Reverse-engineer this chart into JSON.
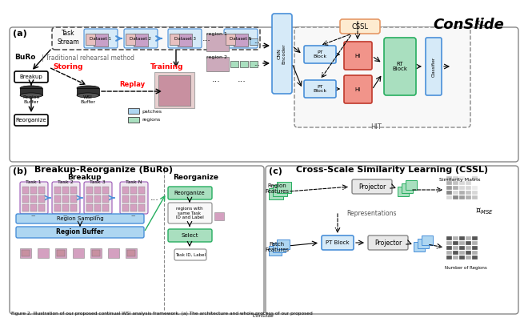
{
  "title": "ConSlide",
  "caption": "Figure 2. Illustration of our proposed continual WSI analysis framework. (a) The architecture and whole process of our proposed ConSlide",
  "bg_color": "#ffffff",
  "panel_a_label": "(a)",
  "panel_b_label": "(b)",
  "panel_c_label": "(c)",
  "panel_b_title": "Breakup-Reorganize (BuRo)",
  "panel_c_title": "Cross-Scale Similarity Learning (CSSL)",
  "colors": {
    "light_blue": "#AED6F1",
    "light_green": "#A9DFBF",
    "light_pink": "#F1948A",
    "light_orange": "#F5CBA7",
    "blue_box": "#5DADE2",
    "green_box": "#58D68D",
    "gray_box": "#BDC3C7",
    "dark_box": "#2C3E50",
    "red_text": "#FF0000",
    "border_gray": "#7F8C8D",
    "peach": "#FDEBD0",
    "cssl_box": "#F5CBA7"
  }
}
